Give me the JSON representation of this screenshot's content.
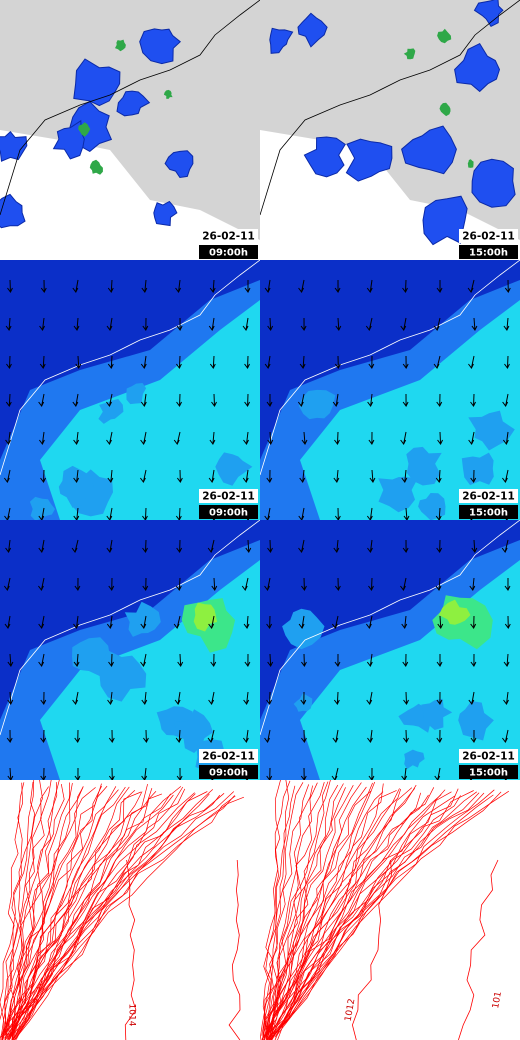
{
  "panels": [
    {
      "date": "26-02-11",
      "time": "09:00h"
    },
    {
      "date": "26-02-11",
      "time": "15:00h"
    },
    {
      "date": "26-02-11",
      "time": "09:00h"
    },
    {
      "date": "26-02-11",
      "time": "15:00h"
    },
    {
      "date": "26-02-11",
      "time": "09:00h"
    },
    {
      "date": "26-02-11",
      "time": "15:00h"
    },
    {
      "contour_labels": [
        "1014"
      ]
    },
    {
      "contour_labels": [
        "1012",
        "101"
      ]
    }
  ]
}
